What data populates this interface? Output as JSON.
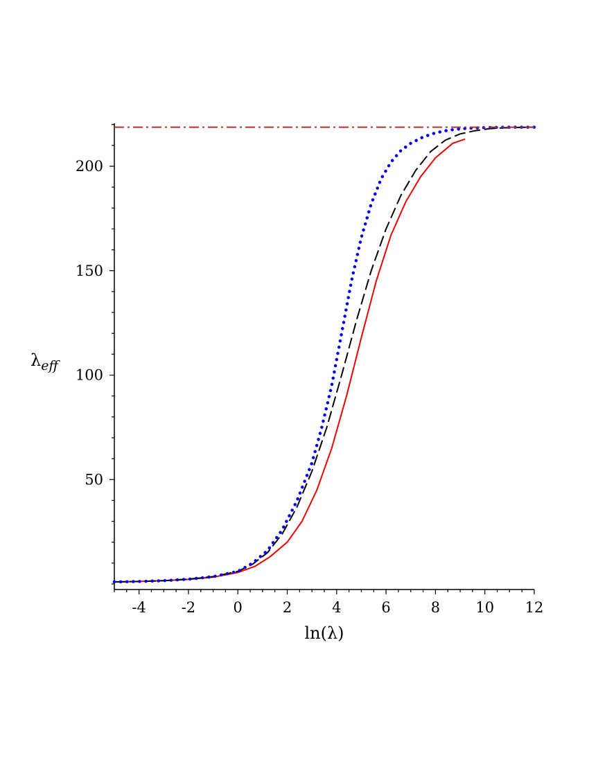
{
  "chart_data": {
    "type": "line",
    "title": "",
    "xlabel": "ln(λ)",
    "ylabel": {
      "base": "λ",
      "subscript": "eff"
    },
    "xlim": [
      -5,
      12
    ],
    "ylim": [
      0,
      220
    ],
    "x_ticks": [
      -4,
      -2,
      0,
      2,
      4,
      6,
      8,
      10,
      12
    ],
    "x_tick_labels": [
      "-4",
      "-2",
      "0",
      "2",
      "4",
      "6",
      "8",
      "10",
      "12"
    ],
    "y_ticks": [
      50,
      100,
      150,
      200
    ],
    "y_tick_labels": [
      "50",
      "100",
      "150",
      "200"
    ],
    "grid": false,
    "legend": "none",
    "series": [
      {
        "style": "solid",
        "color": "#ee0000",
        "x": [
          -5,
          -4,
          -3,
          -2,
          -1,
          0,
          0.7,
          1.3,
          2,
          2.6,
          3.2,
          3.8,
          4.4,
          5,
          5.6,
          6.2,
          6.8,
          7.4,
          8,
          8.7,
          9.2
        ],
        "y": [
          1,
          1.2,
          1.6,
          2.2,
          3.3,
          5.5,
          8.5,
          13,
          20,
          30,
          45,
          65,
          90,
          118,
          145,
          167,
          183,
          195,
          204,
          211,
          213
        ]
      },
      {
        "style": "dashed",
        "color": "#000000",
        "x": [
          -5,
          -4,
          -3,
          -2,
          -1,
          0,
          0.6,
          1.2,
          1.8,
          2.4,
          3,
          3.6,
          4.2,
          4.8,
          5.4,
          6,
          6.6,
          7.2,
          7.8,
          8.4,
          9,
          9.6,
          10.2,
          10.8,
          11.4,
          12
        ],
        "y": [
          1,
          1.2,
          1.6,
          2.3,
          3.5,
          6,
          9.5,
          15,
          24,
          37,
          54,
          75,
          100,
          126,
          150,
          170,
          186,
          198,
          207,
          212.5,
          215.5,
          217,
          218,
          218.4,
          218.6,
          218.7
        ]
      },
      {
        "style": "dotted",
        "color": "#0000ee",
        "x": [
          -5,
          -4,
          -3,
          -2,
          -1,
          0,
          0.6,
          1.2,
          1.8,
          2.4,
          3,
          3.4,
          3.8,
          4.2,
          4.6,
          5,
          5.4,
          5.8,
          6.2,
          6.6,
          7,
          7.5,
          8,
          8.5,
          9,
          9.5,
          10,
          10.5,
          11,
          12
        ],
        "y": [
          1,
          1.2,
          1.6,
          2.3,
          3.5,
          6,
          10,
          16,
          26,
          40,
          58,
          75,
          95,
          120,
          145,
          166,
          182,
          194,
          202,
          207.5,
          211,
          214,
          216,
          217.2,
          217.9,
          218.3,
          218.5,
          218.6,
          218.7,
          218.7
        ]
      },
      {
        "style": "dashdot",
        "color": "#b03030",
        "x": [
          -5,
          12
        ],
        "y": [
          218.7,
          218.7
        ]
      }
    ]
  }
}
